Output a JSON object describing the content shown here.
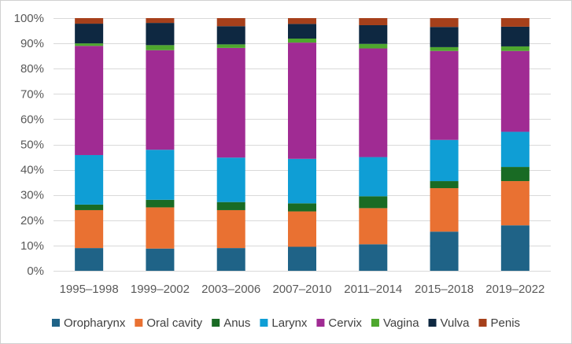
{
  "chart_data": {
    "type": "bar",
    "stacked": true,
    "percent_stacked": true,
    "categories": [
      "1995–1998",
      "1999–2002",
      "2003–2006",
      "2007–2010",
      "2011–2014",
      "2015–2018",
      "2019–2022"
    ],
    "y_ticks": [
      "0%",
      "10%",
      "20%",
      "30%",
      "40%",
      "50%",
      "60%",
      "70%",
      "80%",
      "90%",
      "100%"
    ],
    "ylim": [
      0,
      100
    ],
    "grid": true,
    "legend_position": "bottom",
    "series": [
      {
        "name": "Oropharynx",
        "color": "#1f6387",
        "values": [
          9.0,
          8.8,
          9.0,
          9.5,
          10.5,
          15.5,
          18.0
        ]
      },
      {
        "name": "Oral cavity",
        "color": "#e97132",
        "values": [
          15.0,
          16.3,
          15.0,
          14.0,
          14.3,
          17.2,
          17.5
        ]
      },
      {
        "name": "Anus",
        "color": "#196b24",
        "values": [
          2.2,
          3.0,
          3.2,
          3.2,
          4.7,
          2.8,
          5.6
        ]
      },
      {
        "name": "Larynx",
        "color": "#0f9ed5",
        "values": [
          19.6,
          19.8,
          17.6,
          17.6,
          15.5,
          16.3,
          13.9
        ]
      },
      {
        "name": "Cervix",
        "color": "#a02b93",
        "values": [
          43.2,
          39.4,
          43.4,
          46.0,
          43.0,
          35.2,
          32.0
        ]
      },
      {
        "name": "Vagina",
        "color": "#4ea72e",
        "values": [
          1.0,
          2.0,
          1.4,
          1.6,
          1.8,
          1.5,
          1.8
        ]
      },
      {
        "name": "Vulva",
        "color": "#0e2841",
        "values": [
          7.8,
          8.8,
          7.2,
          5.8,
          7.4,
          8.0,
          7.8
        ]
      },
      {
        "name": "Penis",
        "color": "#a6401b",
        "values": [
          2.2,
          1.9,
          3.2,
          2.3,
          2.8,
          3.5,
          3.4
        ]
      }
    ]
  }
}
